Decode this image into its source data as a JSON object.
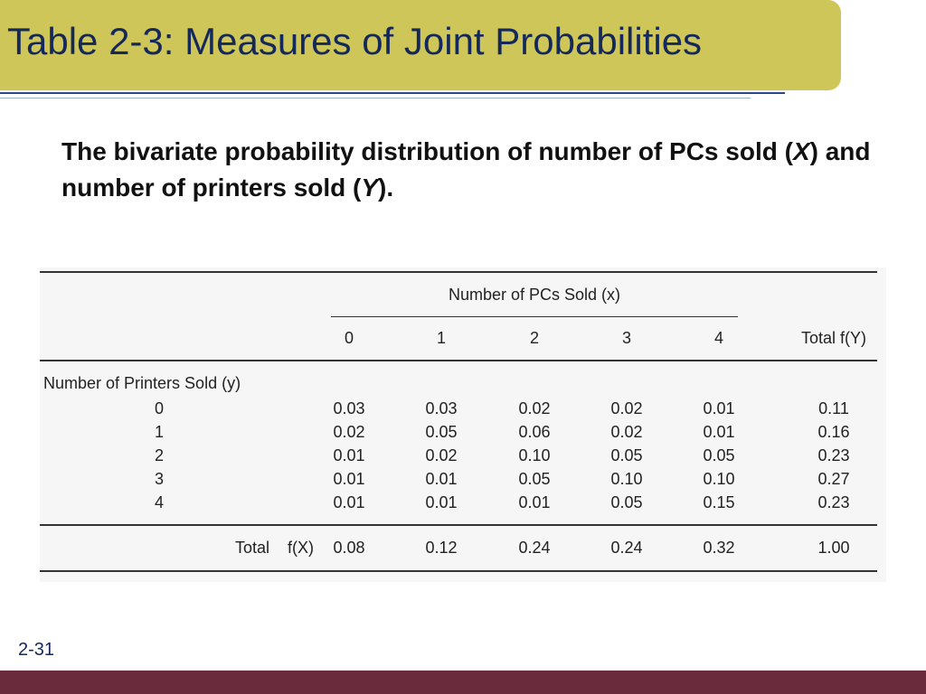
{
  "slide": {
    "title": "Table 2-3: Measures of Joint Probabilities",
    "subtitle_part1": "The bivariate probability distribution of number of PCs sold (",
    "subtitle_x": "X",
    "subtitle_part2": ") and number of printers sold (",
    "subtitle_y": "Y",
    "subtitle_part3": ").",
    "slide_number": "2-31"
  },
  "table": {
    "col_group_header": "Number of PCs Sold (x)",
    "col_headers": [
      "0",
      "1",
      "2",
      "3",
      "4"
    ],
    "total_header": "Total f(Y)",
    "row_group_header": "Number of Printers Sold (y)",
    "rows": [
      {
        "label": "0",
        "values": [
          "0.03",
          "0.03",
          "0.02",
          "0.02",
          "0.01"
        ],
        "total": "0.11"
      },
      {
        "label": "1",
        "values": [
          "0.02",
          "0.05",
          "0.06",
          "0.02",
          "0.01"
        ],
        "total": "0.16"
      },
      {
        "label": "2",
        "values": [
          "0.01",
          "0.02",
          "0.10",
          "0.05",
          "0.05"
        ],
        "total": "0.23"
      },
      {
        "label": "3",
        "values": [
          "0.01",
          "0.01",
          "0.05",
          "0.10",
          "0.10"
        ],
        "total": "0.27"
      },
      {
        "label": "4",
        "values": [
          "0.01",
          "0.01",
          "0.01",
          "0.05",
          "0.15"
        ],
        "total": "0.23"
      }
    ],
    "total_row": {
      "label": "Total",
      "sublabel": "f(X)",
      "values": [
        "0.08",
        "0.12",
        "0.24",
        "0.24",
        "0.32"
      ],
      "total": "1.00"
    }
  },
  "colors": {
    "title_bar": "#cfc65a",
    "title_text": "#14285a",
    "footer_bar": "#6a2b3d"
  }
}
